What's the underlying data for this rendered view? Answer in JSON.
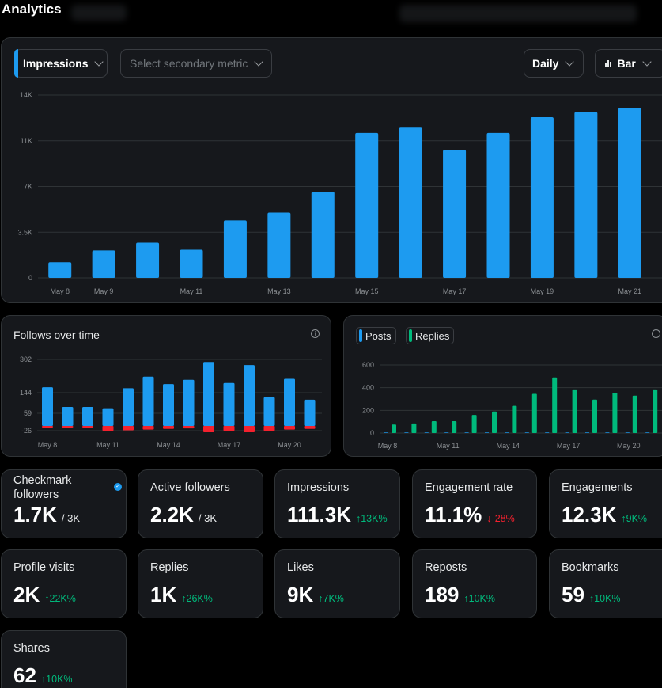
{
  "app": {
    "title": "Analytics"
  },
  "controls": {
    "primary_metric": "Impressions",
    "secondary_placeholder": "Select secondary metric",
    "interval": "Daily",
    "chart_type": "Bar"
  },
  "colors": {
    "accent": "#1d9bf0",
    "positive": "#00ba7c",
    "negative": "#f4212e",
    "replies": "#00ba7c"
  },
  "chart_data": [
    {
      "type": "bar",
      "categories": [
        "May 8",
        "May 9",
        "May 10",
        "May 11",
        "May 12",
        "May 13",
        "May 14",
        "May 15",
        "May 16",
        "May 17",
        "May 18",
        "May 19",
        "May 20",
        "May 21"
      ],
      "values": [
        1200,
        2100,
        2700,
        2150,
        4400,
        5000,
        6600,
        11100,
        11500,
        9800,
        11100,
        12300,
        12700,
        13000
      ],
      "ytick_labels": [
        "0",
        "3.5K",
        "7K",
        "11K",
        "14K"
      ],
      "yticks": [
        0,
        3500,
        7000,
        10500,
        14000
      ],
      "xtick_labels": [
        "May 8",
        "May 9",
        "",
        "May 11",
        "",
        "May 13",
        "",
        "May 15",
        "",
        "May 17",
        "",
        "May 19",
        "",
        "May 21"
      ],
      "ylim": [
        0,
        14000
      ],
      "grid": true
    },
    {
      "type": "bar",
      "title": "Follows over time",
      "categories": [
        "May 8",
        "May 9",
        "May 10",
        "May 11",
        "May 12",
        "May 13",
        "May 14",
        "May 15",
        "May 16",
        "May 17",
        "May 18",
        "May 19",
        "May 20",
        "May 21"
      ],
      "series": [
        {
          "values": [
            170,
            85,
            85,
            80,
            165,
            220,
            185,
            205,
            290,
            190,
            275,
            125,
            210,
            115
          ]
        },
        {
          "values": [
            -5,
            -5,
            -5,
            -20,
            -18,
            -15,
            -12,
            -10,
            -26,
            -20,
            -26,
            -20,
            -15,
            -12
          ]
        }
      ],
      "ytick_labels": [
        "302",
        "144",
        "59",
        "-26"
      ],
      "yticks": [
        302,
        144,
        59,
        -26
      ],
      "xtick_labels": [
        "May 8",
        "",
        "",
        "May 11",
        "",
        "",
        "May 14",
        "",
        "",
        "May 17",
        "",
        "",
        "May 20",
        ""
      ],
      "ylim": [
        -26,
        302
      ],
      "grid": true
    },
    {
      "type": "bar",
      "categories": [
        "May 8",
        "May 9",
        "May 10",
        "May 11",
        "May 12",
        "May 13",
        "May 14",
        "May 15",
        "May 16",
        "May 17",
        "May 18",
        "May 19",
        "May 20",
        "May 21"
      ],
      "series": [
        {
          "name": "Posts",
          "values": [
            5,
            5,
            5,
            5,
            5,
            5,
            5,
            5,
            5,
            5,
            5,
            5,
            5,
            5
          ]
        },
        {
          "name": "Replies",
          "values": [
            75,
            85,
            105,
            105,
            160,
            190,
            240,
            345,
            490,
            385,
            295,
            355,
            330,
            385
          ]
        }
      ],
      "ytick_labels": [
        "0",
        "200",
        "400",
        "600"
      ],
      "yticks": [
        0,
        200,
        400,
        600
      ],
      "xtick_labels": [
        "May 8",
        "",
        "",
        "May 11",
        "",
        "",
        "May 14",
        "",
        "",
        "May 17",
        "",
        "",
        "May 20",
        ""
      ],
      "ylim": [
        0,
        600
      ],
      "grid": true
    }
  ],
  "stats": [
    {
      "label": "Checkmark followers",
      "value": "1.7K",
      "denom": "/ 3K",
      "verified": true
    },
    {
      "label": "Active followers",
      "value": "2.2K",
      "denom": "/ 3K"
    },
    {
      "label": "Impressions",
      "value": "111.3K",
      "delta": "↑13K%",
      "trend": "up"
    },
    {
      "label": "Engagement rate",
      "value": "11.1%",
      "delta": "↓-28%",
      "trend": "down"
    },
    {
      "label": "Engagements",
      "value": "12.3K",
      "delta": "↑9K%",
      "trend": "up"
    },
    {
      "label": "Profile visits",
      "value": "2K",
      "delta": "↑22K%",
      "trend": "up"
    },
    {
      "label": "Replies",
      "value": "1K",
      "delta": "↑26K%",
      "trend": "up"
    },
    {
      "label": "Likes",
      "value": "9K",
      "delta": "↑7K%",
      "trend": "up"
    },
    {
      "label": "Reposts",
      "value": "189",
      "delta": "↑10K%",
      "trend": "up"
    },
    {
      "label": "Bookmarks",
      "value": "59",
      "delta": "↑10K%",
      "trend": "up"
    },
    {
      "label": "Shares",
      "value": "62",
      "delta": "↑10K%",
      "trend": "up"
    }
  ]
}
